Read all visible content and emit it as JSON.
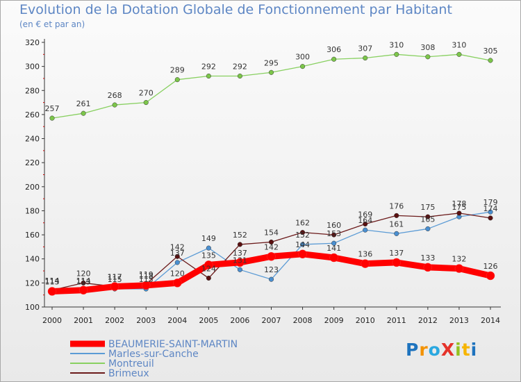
{
  "header": {
    "title": "Evolution de la Dotation Globale de Fonctionnement par Habitant",
    "subtitle": "(en € et par an)"
  },
  "logo": {
    "text": "ProXiti"
  },
  "chart_data": {
    "type": "line",
    "title": "Evolution de la Dotation Globale de Fonctionnement par Habitant",
    "subtitle": "(en € et par an)",
    "xlabel": "",
    "ylabel": "",
    "x": [
      "2000",
      "2001",
      "2002",
      "2003",
      "2004",
      "2005",
      "2006",
      "2007",
      "2008",
      "2009",
      "2010",
      "2011",
      "2012",
      "2013",
      "2014"
    ],
    "ylim": [
      100,
      320
    ],
    "yticks": [
      100,
      120,
      140,
      160,
      180,
      200,
      220,
      240,
      260,
      280,
      300,
      320
    ],
    "grid": false,
    "legend_position": "bottom-left",
    "series": [
      {
        "name": "BEAUMERIE-SAINT-MARTIN",
        "color": "#ff0000",
        "values": [
          113,
          114,
          117,
          118,
          120,
          135,
          137,
          142,
          144,
          141,
          136,
          137,
          133,
          132,
          126
        ]
      },
      {
        "name": "Marles-sur-Canche",
        "color": "#5b9bd5",
        "values": [
          114,
          113,
          115,
          115,
          137,
          149,
          131,
          123,
          152,
          153,
          164,
          161,
          165,
          175,
          179
        ]
      },
      {
        "name": "Montreuil",
        "color": "#88d060",
        "values": [
          257,
          261,
          268,
          270,
          289,
          292,
          292,
          295,
          300,
          306,
          307,
          310,
          308,
          310,
          305
        ]
      },
      {
        "name": "Brimeux",
        "color": "#6b1a1a",
        "values": [
          114,
          120,
          117,
          119,
          142,
          124,
          152,
          154,
          162,
          160,
          169,
          176,
          175,
          178,
          174
        ]
      }
    ],
    "data_labels": {
      "BEAUMERIE-SAINT-MARTIN": [
        "113",
        "114",
        "117",
        "118",
        "120",
        "135",
        "137",
        "142",
        "144",
        "141",
        "136",
        "137",
        "133",
        "132",
        "126"
      ],
      "Marles-sur-Canche": [
        "114",
        "113",
        "115",
        "115",
        "137",
        "149",
        "131",
        "123",
        "152",
        "153",
        "164",
        "161",
        "165",
        "175",
        "179"
      ],
      "Montreuil": [
        "257",
        "261",
        "268",
        "270",
        "289",
        "292",
        "292",
        "295",
        "300",
        "306",
        "307",
        "310",
        "308",
        "310",
        "305"
      ],
      "Brimeux": [
        "114",
        "120",
        "117",
        "119",
        "142",
        "124",
        "152",
        "154",
        "162",
        "160",
        "169",
        "176",
        "175",
        "178",
        "174"
      ]
    }
  }
}
